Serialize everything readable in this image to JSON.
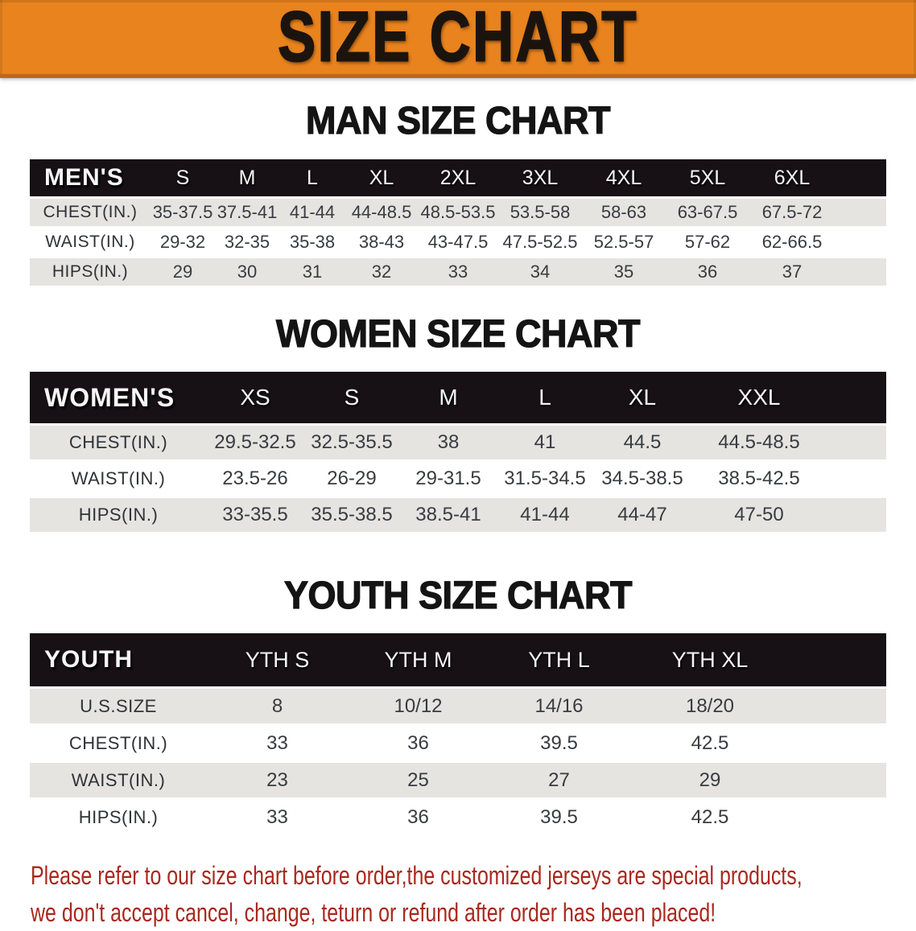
{
  "banner": {
    "title": "SIZE CHART"
  },
  "colors": {
    "banner_bg": "#e8831e",
    "banner_edge": "#c0661b",
    "table_header_bg": "#171115",
    "row_stripe_bg": "#e5e4e1",
    "row_plain_bg": "#ffffff",
    "data_text": "#383b40",
    "note_text": "#a9281e"
  },
  "sections": [
    {
      "heading": "MAN SIZE CHART",
      "group_label": "MEN'S",
      "columns": [
        "S",
        "M",
        "L",
        "XL",
        "2XL",
        "3XL",
        "4XL",
        "5XL",
        "6XL"
      ],
      "rows": [
        {
          "label": "CHEST(IN.)",
          "values": [
            "35-37.5",
            "37.5-41",
            "41-44",
            "44-48.5",
            "48.5-53.5",
            "53.5-58",
            "58-63",
            "63-67.5",
            "67.5-72"
          ]
        },
        {
          "label": "WAIST(IN.)",
          "values": [
            "29-32",
            "32-35",
            "35-38",
            "38-43",
            "43-47.5",
            "47.5-52.5",
            "52.5-57",
            "57-62",
            "62-66.5"
          ]
        },
        {
          "label": "HIPS(IN.)",
          "values": [
            "29",
            "30",
            "31",
            "32",
            "33",
            "34",
            "35",
            "36",
            "37"
          ]
        }
      ]
    },
    {
      "heading": "WOMEN SIZE CHART",
      "group_label": "WOMEN'S",
      "columns": [
        "XS",
        "S",
        "M",
        "L",
        "XL",
        "XXL"
      ],
      "rows": [
        {
          "label": "CHEST(IN.)",
          "values": [
            "29.5-32.5",
            "32.5-35.5",
            "38",
            "41",
            "44.5",
            "44.5-48.5"
          ]
        },
        {
          "label": "WAIST(IN.)",
          "values": [
            "23.5-26",
            "26-29",
            "29-31.5",
            "31.5-34.5",
            "34.5-38.5",
            "38.5-42.5"
          ]
        },
        {
          "label": "HIPS(IN.)",
          "values": [
            "33-35.5",
            "35.5-38.5",
            "38.5-41",
            "41-44",
            "44-47",
            "47-50"
          ]
        }
      ]
    },
    {
      "heading": "YOUTH SIZE CHART",
      "group_label": "YOUTH",
      "columns": [
        "YTH S",
        "YTH M",
        "YTH L",
        "YTH XL"
      ],
      "rows": [
        {
          "label": "U.S.SIZE",
          "values": [
            "8",
            "10/12",
            "14/16",
            "18/20"
          ]
        },
        {
          "label": "CHEST(IN.)",
          "values": [
            "33",
            "36",
            "39.5",
            "42.5"
          ]
        },
        {
          "label": "WAIST(IN.)",
          "values": [
            "23",
            "25",
            "27",
            "29"
          ]
        },
        {
          "label": "HIPS(IN.)",
          "values": [
            "33",
            "36",
            "39.5",
            "42.5"
          ]
        }
      ]
    }
  ],
  "note": {
    "lines": [
      "Please refer to our size chart before order,the customized jerseys are special products,",
      "we don't accept cancel, change, teturn or refund after order has been placed!"
    ]
  }
}
